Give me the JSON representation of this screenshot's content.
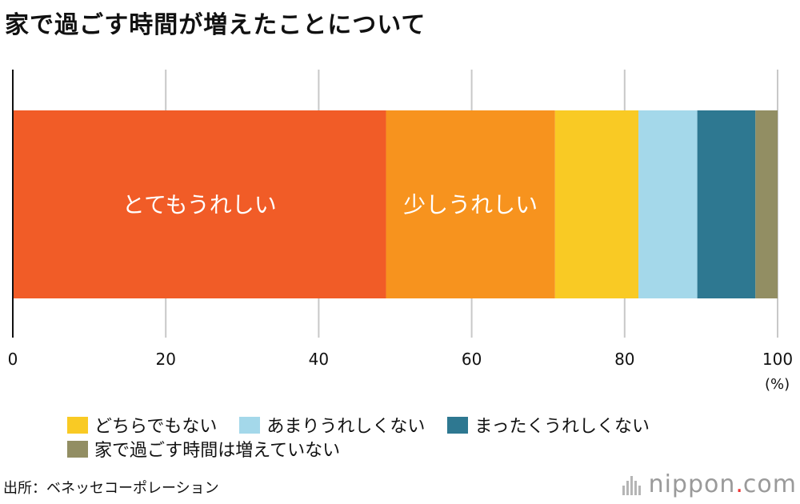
{
  "title": "家で過ごす時間が増えたことについて",
  "chart_data": {
    "type": "bar",
    "orientation": "horizontal",
    "stacked": true,
    "unit_label": "(%)",
    "xlim": [
      0,
      100
    ],
    "ticks": [
      "0",
      "20",
      "40",
      "60",
      "80",
      "100"
    ],
    "tick_values": [
      0,
      20,
      40,
      60,
      80,
      100
    ],
    "grid": true,
    "series": [
      {
        "name": "とてもうれしい",
        "value": 48.8,
        "color": "#f15c27",
        "inbar_label": "とてもうれしい"
      },
      {
        "name": "少しうれしい",
        "value": 22.1,
        "color": "#f7931e",
        "inbar_label": "少しうれしい"
      },
      {
        "name": "どちらでもない",
        "value": 10.9,
        "color": "#f9ca24",
        "inbar_label": ""
      },
      {
        "name": "あまりうれしくない",
        "value": 7.7,
        "color": "#a4d8ea",
        "inbar_label": ""
      },
      {
        "name": "まったくうれしくない",
        "value": 7.6,
        "color": "#2e7891",
        "inbar_label": ""
      },
      {
        "name": "家で過ごす時間は増えていない",
        "value": 2.9,
        "color": "#928e63",
        "inbar_label": ""
      }
    ]
  },
  "legend": {
    "rows": [
      [
        {
          "label": "どちらでもない",
          "color": "#f9ca24"
        },
        {
          "label": "あまりうれしくない",
          "color": "#a4d8ea"
        },
        {
          "label": "まったくうれしくない",
          "color": "#2e7891"
        }
      ],
      [
        {
          "label": "家で過ごす時間は増えていない",
          "color": "#928e63"
        }
      ]
    ]
  },
  "source": "出所：ベネッセコーポレーション",
  "logo": {
    "name": "nippon",
    "dot": ".",
    "suffix": "com"
  }
}
